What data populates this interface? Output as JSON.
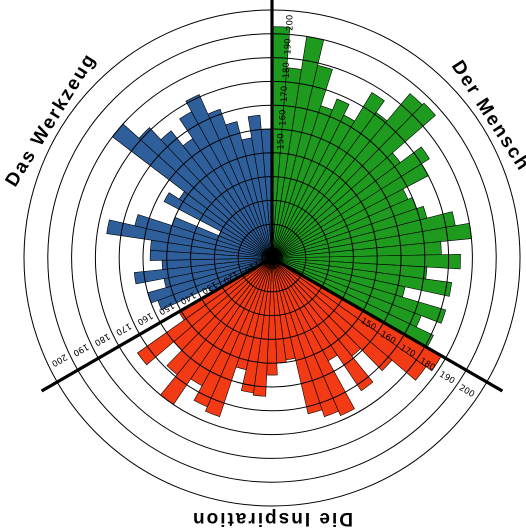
{
  "chart_data": {
    "type": "polar-bar",
    "title": "",
    "rlim": [
      100,
      200
    ],
    "ring_values": [
      100,
      110,
      120,
      130,
      140,
      150,
      160,
      170,
      180,
      190,
      200
    ],
    "sectors": [
      {
        "name": "Der Mensch",
        "color": "#1e9b1e",
        "tick_labels": [
          "150",
          "160",
          "170",
          "180",
          "190",
          "200"
        ],
        "values": [
          193,
          176,
          190,
          179,
          163,
          168,
          163,
          177,
          171,
          186,
          187,
          163,
          174,
          170,
          158,
          160,
          163,
          174,
          180,
          167,
          175,
          161,
          172,
          153,
          172,
          163,
          171
        ]
      },
      {
        "name": "Die Inspiration",
        "color": "#f23a14",
        "tick_labels": [
          "150",
          "160",
          "170",
          "180",
          "190",
          "200"
        ],
        "values": [
          178,
          175,
          162,
          149,
          163,
          145,
          168,
          166,
          163,
          139,
          140,
          145,
          154,
          153,
          144,
          166,
          164,
          157,
          170,
          159,
          150,
          165,
          141
        ]
      },
      {
        "name": "Das Werkzeug",
        "color": "#2e5f9b",
        "tick_labels": [
          "110",
          "120",
          "130",
          "140",
          "150",
          "160",
          "170",
          "180",
          "190",
          "200"
        ],
        "values": [
          125,
          147,
          150,
          142,
          154,
          142,
          147,
          147,
          166,
          155,
          140,
          120,
          147,
          142,
          180,
          171,
          164,
          156,
          166,
          171,
          162,
          155,
          147,
          156,
          150
        ]
      }
    ]
  }
}
